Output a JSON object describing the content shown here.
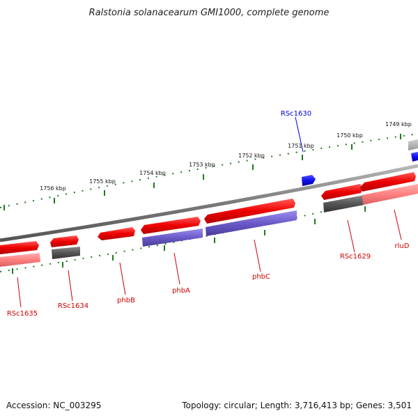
{
  "title": "Ralstonia solanacearum GMI1000, complete genome",
  "footer": {
    "accession": "Accession: NC_003295",
    "summary": "Topology: circular; Length: 3,716,413 bp; Genes: 3,501"
  },
  "colors": {
    "backbone": "#8a8a8a",
    "tick": "#1e7a1e",
    "gene_forward": "#ee1111",
    "gene_reverse": "#ff8080",
    "gene_dark": "#555555",
    "gene_purple": "#6a5ac8",
    "gene_blue": "#1a1aee",
    "label_red": "#cc0000",
    "label_blue": "#0000cc"
  },
  "ticks": [
    "1756 kbp",
    "1755 kbp",
    "1754 kbp",
    "1753 kbp",
    "1752 kbp",
    "1751 kbp",
    "1750 kbp",
    "1749 kbp"
  ],
  "genes": [
    {
      "name": "RSc1630",
      "color": "label_blue"
    },
    {
      "name": "RSc1629",
      "color": "label_red"
    },
    {
      "name": "rluD",
      "color": "label_red"
    },
    {
      "name": "phbC",
      "color": "label_red"
    },
    {
      "name": "phbA",
      "color": "label_red"
    },
    {
      "name": "phbB",
      "color": "label_red"
    },
    {
      "name": "RSc1634",
      "color": "label_red"
    },
    {
      "name": "RSc1635",
      "color": "label_red"
    }
  ]
}
